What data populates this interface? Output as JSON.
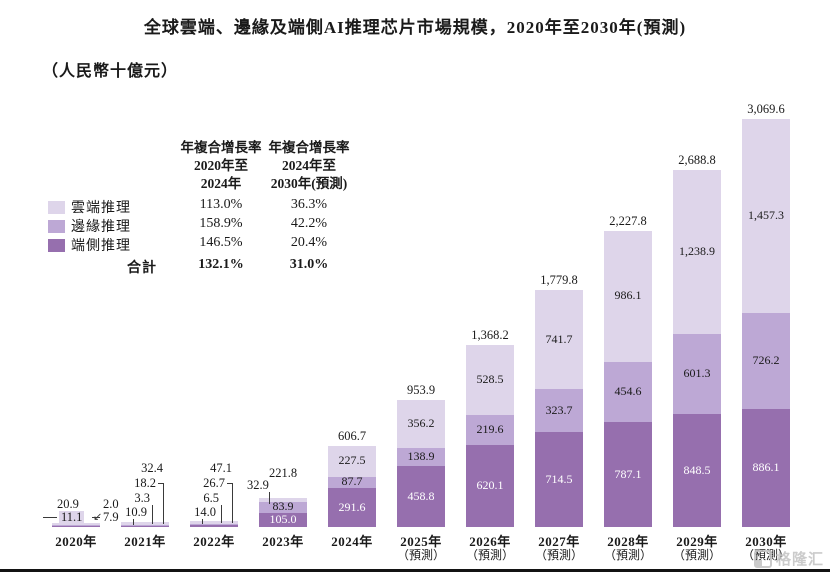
{
  "title": "全球雲端、邊緣及端側AI推理芯片市場規模，2020年至2030年(預測)",
  "subtitle": "（人民幣十億元）",
  "watermark": {
    "brand": "格隆汇"
  },
  "legend": {
    "col1_header": {
      "l1": "年複合增長率",
      "l2": "2020年至",
      "l3": "2024年"
    },
    "col2_header": {
      "l1": "年複合增長率",
      "l2": "2024年至",
      "l3": "2030年(預測)"
    },
    "items": [
      {
        "label": "雲端推理",
        "color": "#ded5ea",
        "cagr_2020_2024": "113.0%",
        "cagr_2024_2030": "36.3%"
      },
      {
        "label": "邊緣推理",
        "color": "#bda8d5",
        "cagr_2020_2024": "158.9%",
        "cagr_2024_2030": "42.2%"
      },
      {
        "label": "端側推理",
        "color": "#966fae",
        "cagr_2020_2024": "146.5%",
        "cagr_2024_2030": "20.4%"
      }
    ],
    "total": {
      "label": "合計",
      "cagr_2020_2024": "132.1%",
      "cagr_2024_2030": "31.0%"
    }
  },
  "chart_data": {
    "type": "bar",
    "stacked": true,
    "title": "全球雲端、邊緣及端側AI推理芯片市場規模，2020年至2030年(預測)",
    "unit": "人民幣十億元",
    "ylim": [
      0,
      3200
    ],
    "grid": false,
    "legend_position": "top-left",
    "categories": [
      {
        "year": "2020年",
        "note": ""
      },
      {
        "year": "2021年",
        "note": ""
      },
      {
        "year": "2022年",
        "note": ""
      },
      {
        "year": "2023年",
        "note": ""
      },
      {
        "year": "2024年",
        "note": ""
      },
      {
        "year": "2025年",
        "note": "（預測）"
      },
      {
        "year": "2026年",
        "note": "（預測）"
      },
      {
        "year": "2027年",
        "note": "（預測）"
      },
      {
        "year": "2028年",
        "note": "（預測）"
      },
      {
        "year": "2029年",
        "note": "（預測）"
      },
      {
        "year": "2030年",
        "note": "（預測）"
      }
    ],
    "series": [
      {
        "name": "雲端推理",
        "color": "#ded5ea",
        "values": [
          11.1,
          18.2,
          26.7,
          32.9,
          227.5,
          356.2,
          528.5,
          741.7,
          986.1,
          1238.9,
          1457.3
        ],
        "labels": [
          "11.1",
          "18.2",
          "26.7",
          "32.9",
          "227.5",
          "356.2",
          "528.5",
          "741.7",
          "986.1",
          "1,238.9",
          "1,457.3"
        ]
      },
      {
        "name": "邊緣推理",
        "color": "#bda8d5",
        "values": [
          2.0,
          3.3,
          6.5,
          83.9,
          87.7,
          138.9,
          219.6,
          323.7,
          454.6,
          601.3,
          726.2
        ],
        "labels": [
          "2.0",
          "3.3",
          "6.5",
          "83.9",
          "87.7",
          "138.9",
          "219.6",
          "323.7",
          "454.6",
          "601.3",
          "726.2"
        ]
      },
      {
        "name": "端側推理",
        "color": "#966fae",
        "values": [
          7.9,
          10.9,
          14.0,
          105.0,
          291.6,
          458.8,
          620.1,
          714.5,
          787.1,
          848.5,
          886.1
        ],
        "labels": [
          "7.9",
          "10.9",
          "14.0",
          "105.0",
          "291.6",
          "458.8",
          "620.1",
          "714.5",
          "787.1",
          "848.5",
          "886.1"
        ]
      }
    ],
    "totals": {
      "values": [
        20.9,
        32.4,
        47.1,
        221.8,
        606.7,
        953.9,
        1368.2,
        1779.8,
        2227.8,
        2688.8,
        3069.6
      ],
      "labels": [
        "20.9",
        "32.4",
        "47.1",
        "221.8",
        "606.7",
        "953.9",
        "1,368.2",
        "1,779.8",
        "2,227.8",
        "2,688.8",
        "3,069.6"
      ]
    }
  }
}
